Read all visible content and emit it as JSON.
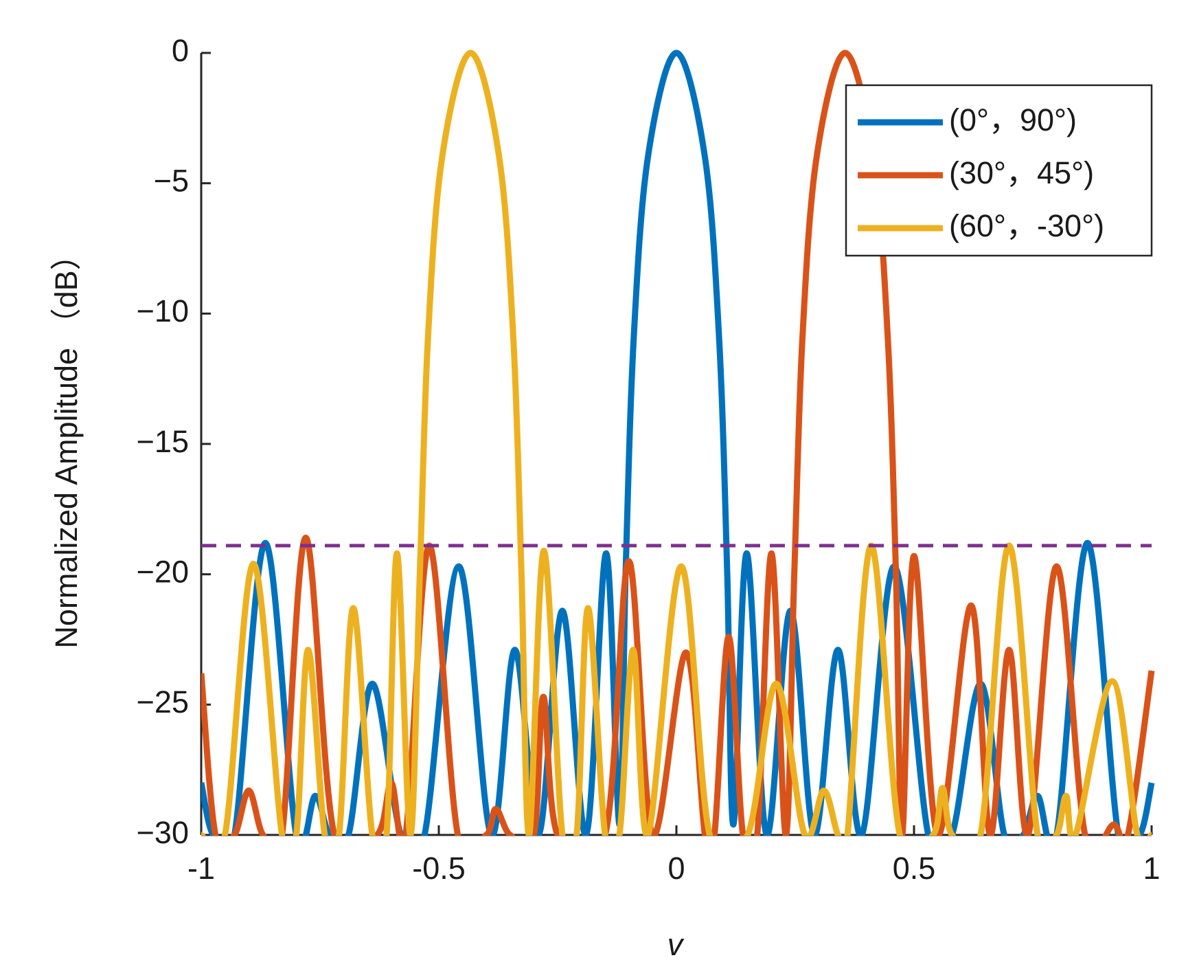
{
  "chart_data": {
    "type": "line",
    "xlabel": "v",
    "ylabel": "Normalized Amplitude （dB）",
    "xlim": [
      -1,
      1
    ],
    "ylim": [
      -30,
      0
    ],
    "xticks": [
      -1,
      -0.5,
      0,
      0.5,
      1
    ],
    "yticks": [
      {
        "value": -30,
        "label": "−30"
      },
      {
        "value": -25,
        "label": "−25"
      },
      {
        "value": -20,
        "label": "−20"
      },
      {
        "value": -15,
        "label": "−15"
      },
      {
        "value": -10,
        "label": "−10"
      },
      {
        "value": -5,
        "label": "−5"
      },
      0
    ],
    "legend": "upper right",
    "reference_line": {
      "y": -18.9,
      "color": "#7e2f8e"
    },
    "series": [
      {
        "name": "(0°，90°)",
        "color": "#0072bd",
        "x": [
          -1,
          -0.975,
          -0.93,
          -0.865,
          -0.8,
          -0.76,
          -0.73,
          -0.69,
          -0.64,
          -0.58,
          -0.53,
          -0.458,
          -0.39,
          -0.34,
          -0.29,
          -0.24,
          -0.19,
          -0.148,
          -0.12,
          -0.107,
          -0.09,
          -0.06,
          0,
          0.06,
          0.09,
          0.107,
          0.12,
          0.148,
          0.19,
          0.24,
          0.29,
          0.34,
          0.39,
          0.458,
          0.53,
          0.58,
          0.64,
          0.69,
          0.73,
          0.76,
          0.8,
          0.865,
          0.93,
          0.975,
          1
        ],
        "values": [
          -28,
          -30,
          -30,
          -18.8,
          -30,
          -28.5,
          -30,
          -30,
          -24.2,
          -30,
          -30,
          -19.7,
          -30,
          -22.9,
          -30,
          -21.4,
          -30,
          -19.2,
          -29.6,
          -20,
          -11,
          -4,
          0,
          -4,
          -11,
          -20,
          -29.6,
          -19.2,
          -30,
          -21.4,
          -30,
          -22.9,
          -30,
          -19.7,
          -30,
          -30,
          -24.2,
          -30,
          -30,
          -28.5,
          -30,
          -18.8,
          -30,
          -30,
          -28
        ]
      },
      {
        "name": "(30°，45°)",
        "color": "#d95319",
        "x": [
          -1,
          -0.97,
          -0.93,
          -0.9,
          -0.87,
          -0.83,
          -0.78,
          -0.72,
          -0.63,
          -0.6,
          -0.57,
          -0.52,
          -0.46,
          -0.4,
          -0.38,
          -0.35,
          -0.3,
          -0.28,
          -0.25,
          -0.15,
          -0.1,
          -0.05,
          0.02,
          0.06,
          0.08,
          0.11,
          0.14,
          0.17,
          0.2,
          0.23,
          0.248,
          0.265,
          0.295,
          0.355,
          0.415,
          0.445,
          0.462,
          0.475,
          0.5,
          0.55,
          0.62,
          0.66,
          0.7,
          0.74,
          0.8,
          0.86,
          0.92,
          0.95,
          1
        ],
        "values": [
          -23.8,
          -30,
          -30,
          -28.3,
          -30,
          -30,
          -18.6,
          -30,
          -30,
          -28,
          -30,
          -18.9,
          -30,
          -30,
          -29,
          -30,
          -30,
          -24.7,
          -30,
          -30,
          -19.5,
          -30,
          -23,
          -30,
          -30,
          -22.4,
          -30,
          -30,
          -19.2,
          -30,
          -20,
          -11,
          -4,
          0,
          -4,
          -11,
          -20,
          -30,
          -19.3,
          -30,
          -21.2,
          -30,
          -22.9,
          -30,
          -19.7,
          -30,
          -29.6,
          -30,
          -23.7
        ]
      },
      {
        "name": "(60°，-30°)",
        "color": "#edb120",
        "x": [
          -1,
          -0.95,
          -0.89,
          -0.83,
          -0.8,
          -0.775,
          -0.74,
          -0.71,
          -0.68,
          -0.64,
          -0.61,
          -0.588,
          -0.56,
          -0.54,
          -0.523,
          -0.493,
          -0.433,
          -0.373,
          -0.343,
          -0.326,
          -0.31,
          -0.279,
          -0.24,
          -0.21,
          -0.186,
          -0.15,
          -0.12,
          -0.091,
          -0.06,
          0.01,
          0.07,
          0.15,
          0.21,
          0.27,
          0.31,
          0.34,
          0.36,
          0.41,
          0.47,
          0.54,
          0.56,
          0.58,
          0.64,
          0.7,
          0.76,
          0.8,
          0.82,
          0.84,
          0.917,
          0.97,
          1
        ],
        "values": [
          -30,
          -30,
          -19.6,
          -30,
          -30,
          -22.9,
          -30,
          -30,
          -21.3,
          -30,
          -30,
          -19.2,
          -30,
          -20,
          -11,
          -4,
          0,
          -4,
          -11,
          -20,
          -30,
          -19.1,
          -30,
          -30,
          -21.3,
          -30,
          -30,
          -22.9,
          -30,
          -19.7,
          -30,
          -30,
          -24.2,
          -30,
          -28.3,
          -30,
          -30,
          -18.9,
          -30,
          -30,
          -28.2,
          -30,
          -30,
          -18.9,
          -30,
          -30,
          -28.5,
          -30,
          -24.1,
          -30,
          -30
        ]
      }
    ]
  }
}
